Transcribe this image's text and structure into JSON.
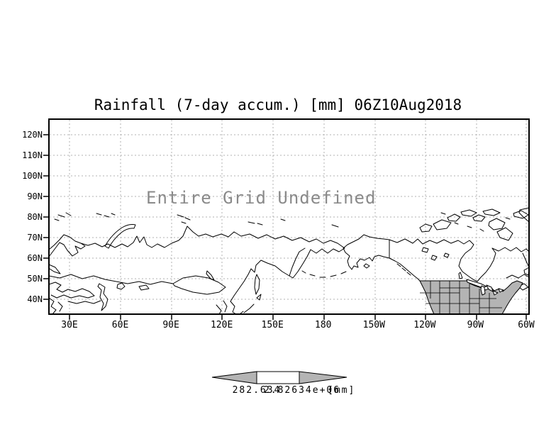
{
  "title": "Rainfall (7-day accum.) [mm] 06Z10Aug2018",
  "map": {
    "message": "Entire Grid Undefined",
    "lat_ticks": [
      "120N",
      "110N",
      "100N",
      "90N",
      "80N",
      "70N",
      "60N",
      "50N",
      "40N"
    ],
    "lon_ticks": [
      "30E",
      "60E",
      "90E",
      "120E",
      "150E",
      "180",
      "150W",
      "120W",
      "90W",
      "60W"
    ],
    "shaded_region": "united-states"
  },
  "colorbar": {
    "min_label": "282.634",
    "max_label": "2.82634e+06",
    "unit": "[mm]"
  },
  "colors": {
    "grid": "#b0b0b0",
    "message_text": "#8a8a8a",
    "us_fill": "#b4b4b4",
    "arrow_fill": "#b4b4b4",
    "coast": "#000000",
    "background": "#ffffff"
  }
}
